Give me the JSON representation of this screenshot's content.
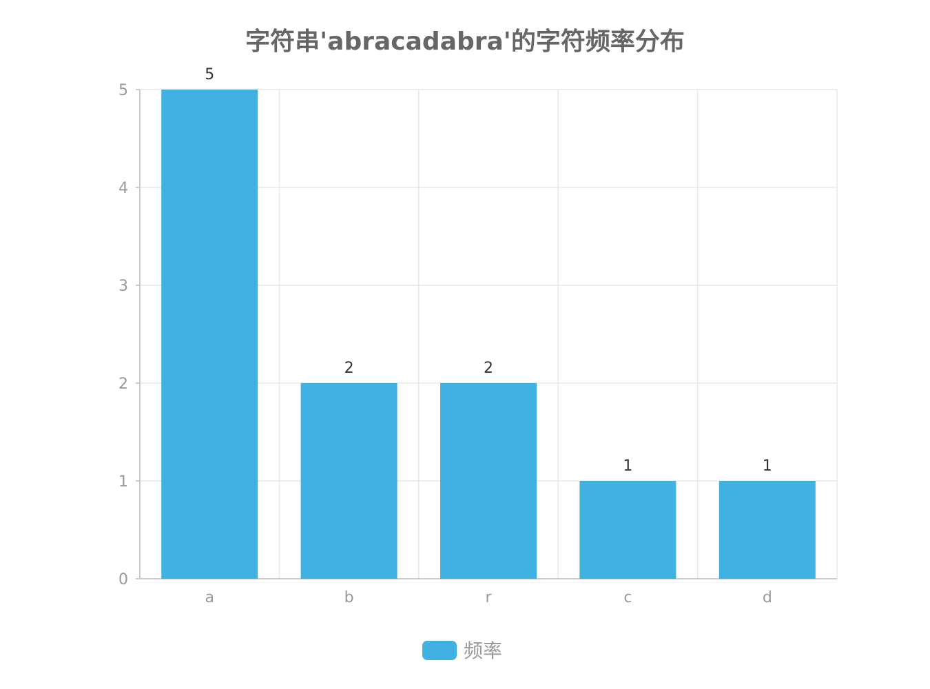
{
  "chart_data": {
    "type": "bar",
    "title": "字符串'abracadabra'的字符频率分布",
    "categories": [
      "a",
      "b",
      "r",
      "c",
      "d"
    ],
    "series": [
      {
        "name": "频率",
        "values": [
          5,
          2,
          2,
          1,
          1
        ],
        "color": "#41b1e1"
      }
    ],
    "ylim": [
      0,
      5
    ],
    "yticks": [
      0,
      1,
      2,
      3,
      4,
      5
    ],
    "grid": true,
    "legend_position": "bottom-center",
    "show_data_labels": true
  }
}
